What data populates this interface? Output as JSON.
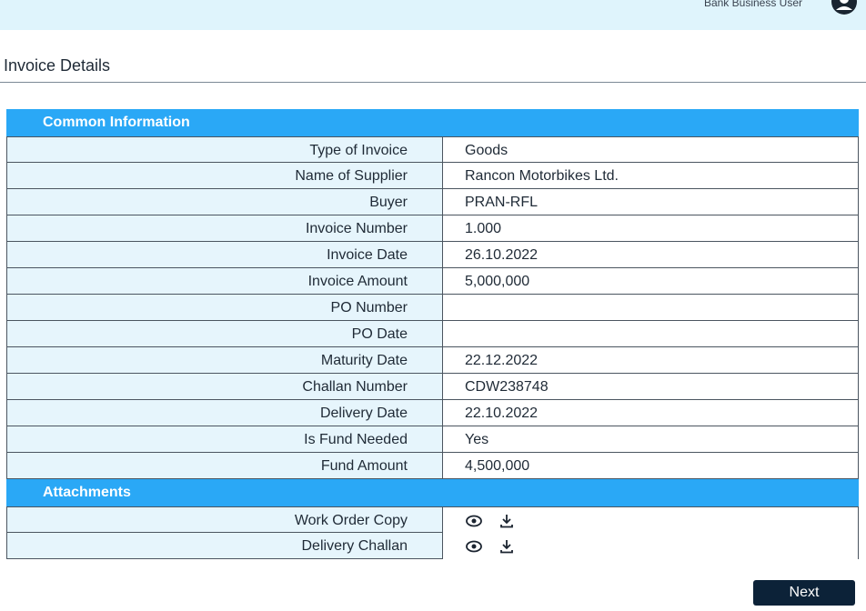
{
  "header": {
    "user_role": "Bank Business User"
  },
  "page": {
    "title": "Invoice Details"
  },
  "common_info": {
    "heading": "Common Information",
    "rows": [
      {
        "label": "Type of Invoice",
        "value": "Goods"
      },
      {
        "label": "Name of Supplier",
        "value": "Rancon Motorbikes Ltd."
      },
      {
        "label": "Buyer",
        "value": "PRAN-RFL"
      },
      {
        "label": "Invoice Number",
        "value": "1.000"
      },
      {
        "label": "Invoice Date",
        "value": "26.10.2022"
      },
      {
        "label": "Invoice Amount",
        "value": "5,000,000"
      },
      {
        "label": "PO Number",
        "value": ""
      },
      {
        "label": "PO Date",
        "value": ""
      },
      {
        "label": "Maturity Date",
        "value": "22.12.2022"
      },
      {
        "label": "Challan Number",
        "value": "CDW238748"
      },
      {
        "label": "Delivery Date",
        "value": "22.10.2022"
      },
      {
        "label": "Is Fund Needed",
        "value": "Yes"
      },
      {
        "label": "Fund Amount",
        "value": "4,500,000"
      }
    ]
  },
  "attachments": {
    "heading": "Attachments",
    "rows": [
      {
        "label": "Work Order Copy",
        "icons": [
          "eye-icon",
          "download-icon"
        ]
      },
      {
        "label": "Delivery Challan",
        "icons": [
          "eye-icon",
          "download-icon"
        ]
      }
    ]
  },
  "footer": {
    "next_label": "Next"
  },
  "colors": {
    "header_bg": "#dff4fc",
    "section": "#2aa8f6",
    "label_bg": "#e6f5fc",
    "button": "#0c2238"
  }
}
